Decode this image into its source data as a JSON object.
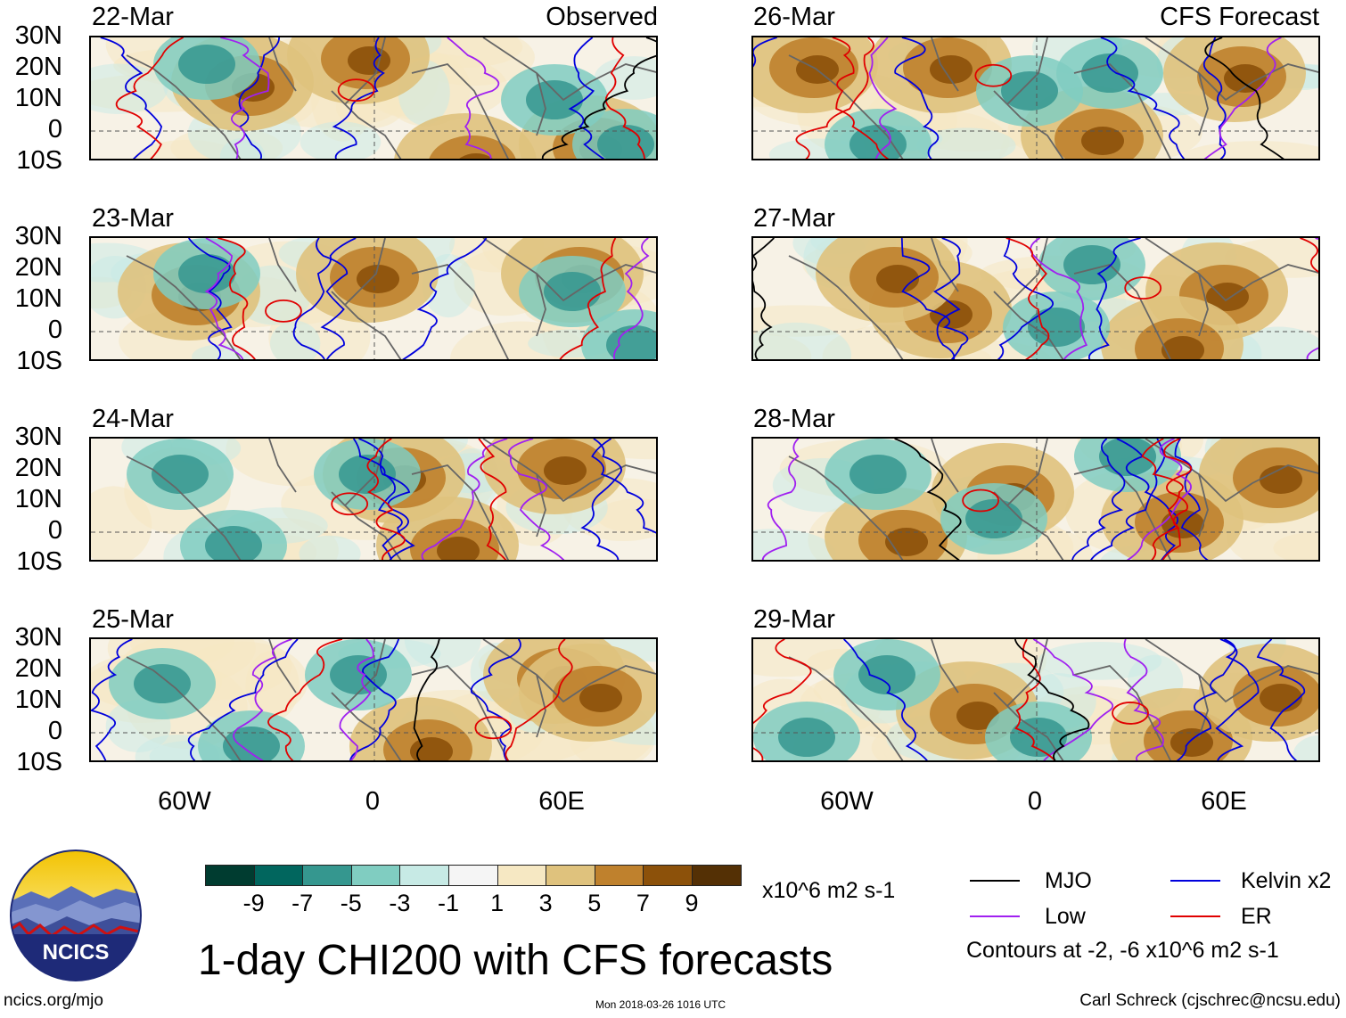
{
  "title": "1-day CHI200 with CFS forecasts",
  "observed_label": "Observed",
  "forecast_label": "CFS Forecast",
  "panels": {
    "left": [
      "22-Mar",
      "23-Mar",
      "24-Mar",
      "25-Mar"
    ],
    "right": [
      "26-Mar",
      "27-Mar",
      "28-Mar",
      "29-Mar"
    ]
  },
  "y_axis": [
    "30N",
    "20N",
    "10N",
    "0",
    "10S"
  ],
  "x_axis": [
    "60W",
    "0",
    "60E"
  ],
  "colorbar": {
    "ticks": [
      "-9",
      "-7",
      "-5",
      "-3",
      "-1",
      "1",
      "3",
      "5",
      "7",
      "9"
    ],
    "units": "x10^6 m2 s-1",
    "colors": [
      "#003c30",
      "#01665e",
      "#35978f",
      "#80cdc1",
      "#c7eae5",
      "#f5f5f5",
      "#f6e8c3",
      "#dfc27d",
      "#bf812d",
      "#8c510a",
      "#543005"
    ]
  },
  "legend": {
    "items": [
      {
        "label": "MJO",
        "color": "#000000"
      },
      {
        "label": "Kelvin x2",
        "color": "#0000dd"
      },
      {
        "label": "Low",
        "color": "#a020f0"
      },
      {
        "label": "ER",
        "color": "#e00000"
      }
    ],
    "note": "Contours at -2, -6 x10^6 m2 s-1"
  },
  "footer": {
    "left": "ncics.org/mjo",
    "center": "Mon 2018-03-26 1016 UTC",
    "right": "Carl Schreck (cjschrec@ncsu.edu)"
  },
  "logo_text": "NCICS"
}
